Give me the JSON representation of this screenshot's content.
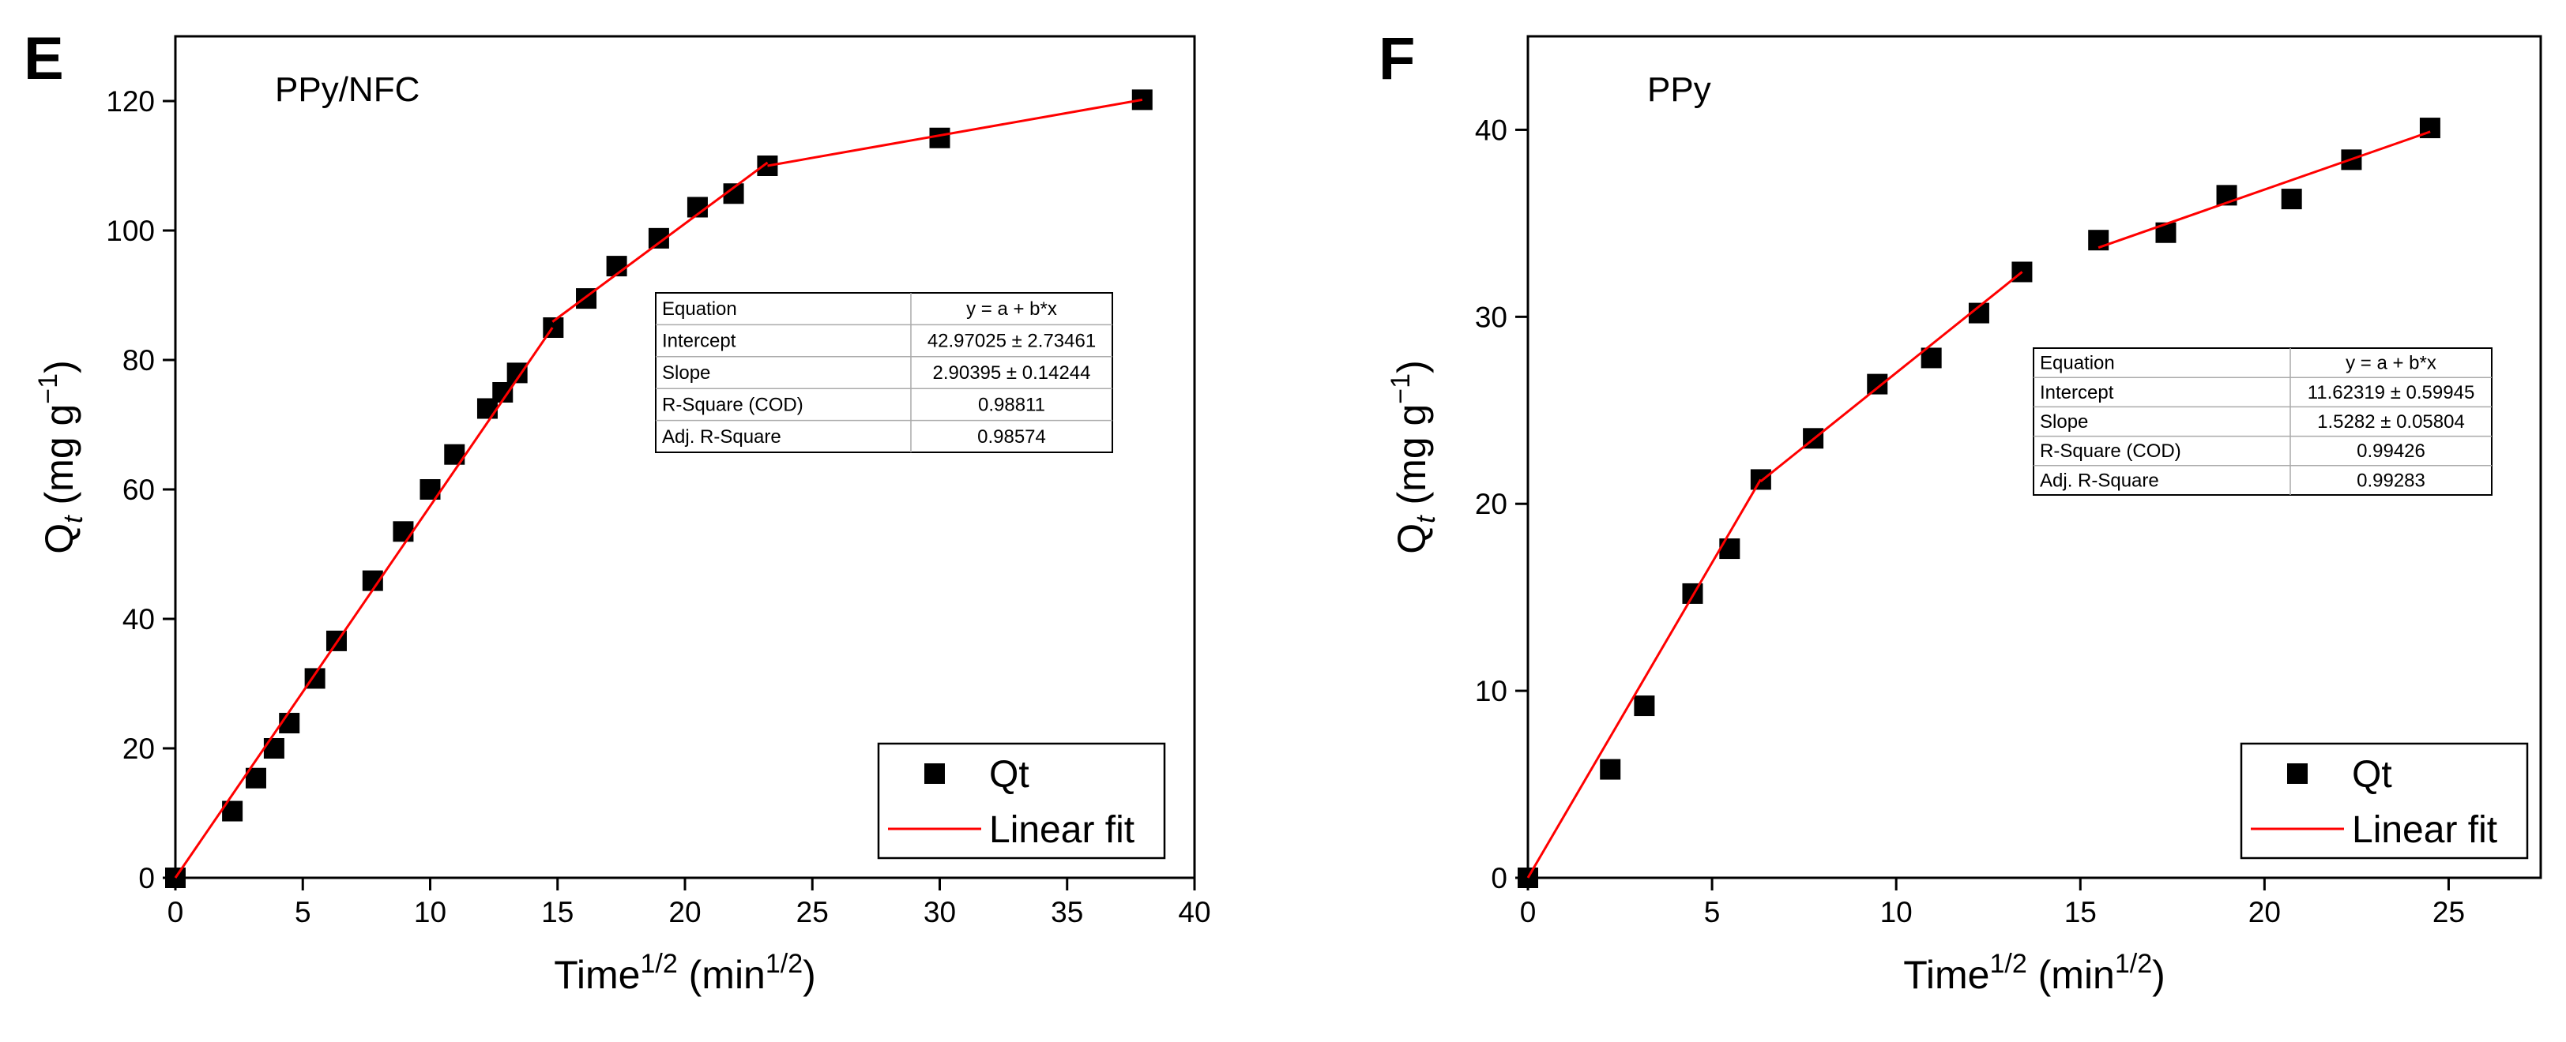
{
  "chart_data": [
    {
      "type": "scatter",
      "panel": "E",
      "annotation": "PPy/NFC",
      "x_label": [
        "Time",
        "1/2",
        " (min",
        "1/2",
        ")"
      ],
      "y_label": [
        "Q",
        "t",
        " (mg g",
        "−1",
        ")"
      ],
      "xlim": [
        0,
        40
      ],
      "xticks": [
        0,
        5,
        10,
        15,
        20,
        25,
        30,
        35,
        40
      ],
      "ylim": [
        0,
        130
      ],
      "yticks": [
        0,
        20,
        40,
        60,
        80,
        100,
        120
      ],
      "legend": "lower right",
      "series": [
        {
          "name": "Qt",
          "color": "#000000",
          "style": "marker",
          "x": [
            0,
            2.236,
            3.162,
            3.873,
            4.472,
            5.477,
            6.325,
            7.746,
            8.944,
            10,
            10.954,
            12.247,
            12.845,
            13.416,
            14.832,
            16.125,
            17.321,
            18.974,
            20.494,
            21.909,
            23.238,
            30,
            37.947
          ],
          "values": [
            0,
            10.3,
            15.4,
            20,
            23.9,
            30.8,
            36.6,
            45.9,
            53.5,
            60,
            65.4,
            72.5,
            75,
            78,
            85,
            89.5,
            94.5,
            98.8,
            103.6,
            105.7,
            110,
            114.3,
            120.2
          ]
        },
        {
          "name": "Linear fit",
          "color": "#ff0000",
          "style": "line",
          "x": [
            0,
            14.8,
            null,
            14.8,
            23.24,
            null,
            23.24,
            37.95
          ],
          "values": [
            0,
            85,
            null,
            85.9,
            110.5,
            null,
            110,
            120.2
          ]
        }
      ],
      "fit_table": [
        [
          "Equation",
          "y = a + b*x"
        ],
        [
          "Intercept",
          "42.97025 ± 2.73461"
        ],
        [
          "Slope",
          "2.90395 ± 0.14244"
        ],
        [
          "R-Square (COD)",
          "0.98811"
        ],
        [
          "Adj. R-Square",
          "0.98574"
        ]
      ]
    },
    {
      "type": "scatter",
      "panel": "F",
      "annotation": "PPy",
      "x_label": [
        "Time",
        "1/2",
        " (min",
        "1/2",
        ")"
      ],
      "y_label": [
        "Q",
        "t",
        " (mg g",
        "−1",
        ")"
      ],
      "xlim": [
        0,
        27.5
      ],
      "xticks": [
        0,
        5,
        10,
        15,
        20,
        25
      ],
      "ylim": [
        0,
        45
      ],
      "yticks": [
        0,
        10,
        20,
        30,
        40
      ],
      "legend": "lower right",
      "series": [
        {
          "name": "Qt",
          "color": "#000000",
          "style": "marker",
          "x": [
            0,
            2.236,
            3.162,
            4.472,
            5.477,
            6.325,
            7.746,
            9.487,
            10.954,
            12.247,
            13.416,
            15.492,
            17.321,
            18.974,
            20.736,
            22.361,
            24.495
          ],
          "values": [
            0,
            5.8,
            9.2,
            15.2,
            17.6,
            21.3,
            23.5,
            26.4,
            27.8,
            30.2,
            32.4,
            34.1,
            34.5,
            36.5,
            36.3,
            38.4,
            40.1
          ]
        },
        {
          "name": "Linear fit",
          "color": "#ff0000",
          "style": "line",
          "x": [
            0,
            6.32,
            null,
            6.32,
            13.42,
            null,
            15.49,
            24.5
          ],
          "values": [
            0,
            21.3,
            null,
            21.2,
            32.4,
            null,
            33.7,
            39.9
          ]
        }
      ],
      "fit_table": [
        [
          "Equation",
          "y = a + b*x"
        ],
        [
          "Intercept",
          "11.62319 ± 0.59945"
        ],
        [
          "Slope",
          "1.5282 ± 0.05804"
        ],
        [
          "R-Square (COD)",
          "0.99426"
        ],
        [
          "Adj. R-Square",
          "0.99283"
        ]
      ]
    }
  ]
}
